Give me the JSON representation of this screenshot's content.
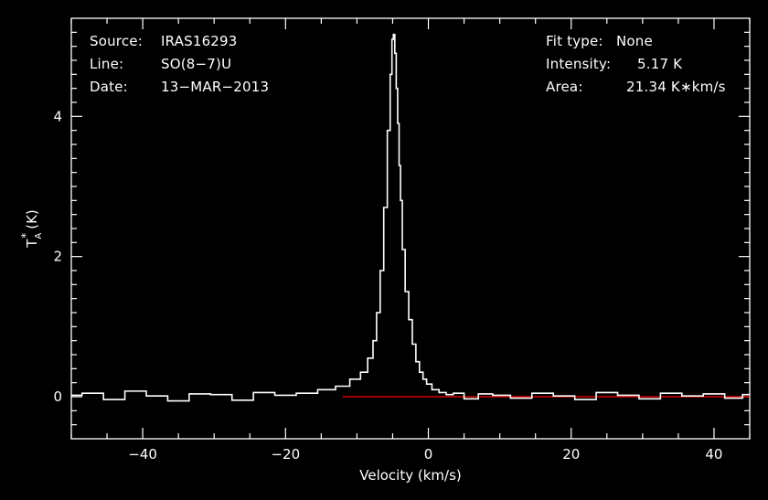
{
  "chart_data": {
    "type": "line",
    "xlabel": "Velocity (km/s)",
    "ylabel_main": "T",
    "ylabel_sup": "*",
    "ylabel_sub": "A",
    "ylabel_unit": "(K)",
    "xlim": [
      -50,
      45
    ],
    "ylim": [
      -0.6,
      5.4
    ],
    "x_ticks": [
      -40,
      -20,
      0,
      20,
      40
    ],
    "x_tick_labels": [
      "−40",
      "−20",
      "0",
      "20",
      "40"
    ],
    "y_ticks": [
      0,
      2,
      4
    ],
    "y_tick_labels": [
      "0",
      "2",
      "4"
    ],
    "series": [
      {
        "color": "#ffffff",
        "x": [
          -50,
          -47,
          -44,
          -41,
          -38,
          -35,
          -32,
          -29,
          -26,
          -23,
          -20,
          -17,
          -14,
          -12,
          -10,
          -9,
          -8,
          -7.5,
          -7,
          -6.5,
          -6,
          -5.5,
          -5.2,
          -5,
          -4.8,
          -4.6,
          -4.4,
          -4.2,
          -4,
          -3.8,
          -3.5,
          -3,
          -2.5,
          -2,
          -1.5,
          -1,
          -0.5,
          0,
          1,
          2,
          3,
          4,
          6,
          8,
          10,
          13,
          16,
          19,
          22,
          25,
          28,
          31,
          34,
          37,
          40,
          43,
          45
        ],
        "y": [
          0.02,
          0.05,
          -0.04,
          0.08,
          0.01,
          -0.06,
          0.04,
          0.03,
          -0.05,
          0.06,
          0.02,
          0.05,
          0.1,
          0.15,
          0.25,
          0.35,
          0.55,
          0.8,
          1.2,
          1.8,
          2.7,
          3.8,
          4.6,
          5.1,
          5.17,
          4.9,
          4.4,
          3.9,
          3.3,
          2.8,
          2.1,
          1.5,
          1.1,
          0.75,
          0.5,
          0.35,
          0.25,
          0.18,
          0.1,
          0.06,
          0.03,
          0.05,
          -0.03,
          0.04,
          0.02,
          -0.02,
          0.05,
          0.01,
          -0.04,
          0.06,
          0.02,
          -0.03,
          0.05,
          0.01,
          0.04,
          -0.02,
          0.03
        ]
      },
      {
        "color": "#ff0000",
        "x": [
          -12,
          45
        ],
        "y": [
          0,
          0
        ]
      }
    ]
  },
  "info": {
    "source_label": "Source:",
    "source_value": "IRAS16293",
    "line_label": "Line:",
    "line_value": "SO(8−7)U",
    "date_label": "Date:",
    "date_value": "13−MAR−2013",
    "fit_label": "Fit type:",
    "fit_value": "None",
    "intensity_label": "Intensity:",
    "intensity_value": "5.17 K",
    "area_label": "Area:",
    "area_value": "21.34 K∗km/s"
  }
}
